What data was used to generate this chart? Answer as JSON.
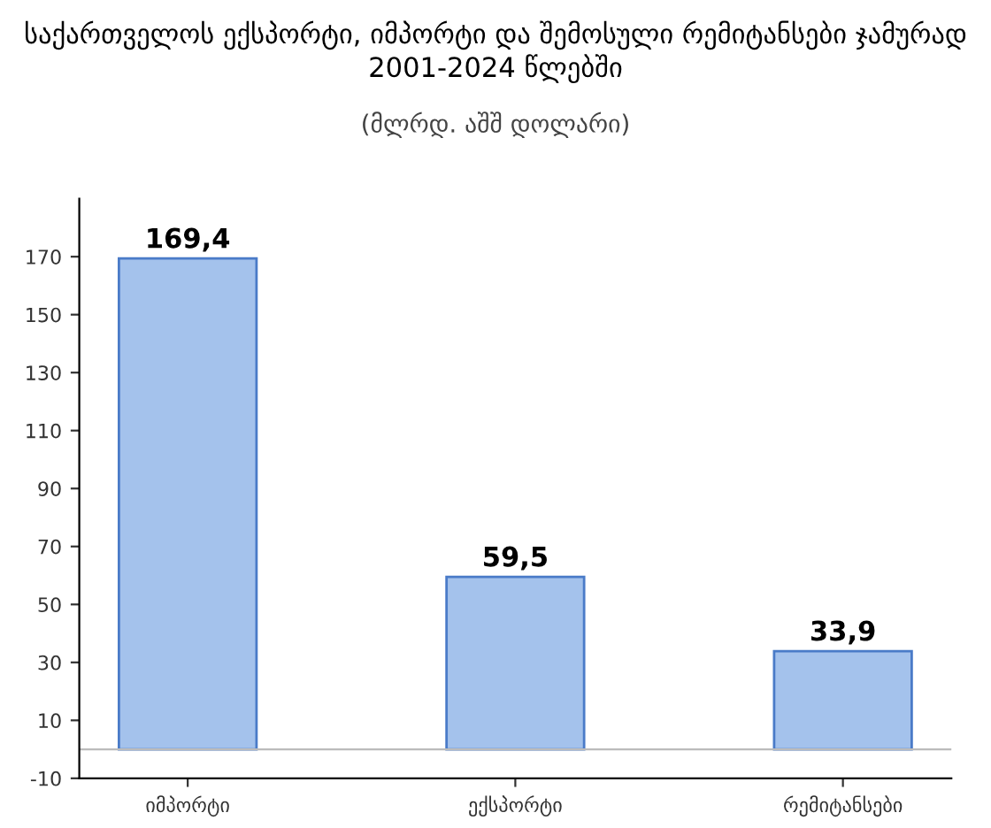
{
  "chart_data": {
    "type": "bar",
    "title": "საქართველოს ექსპორტი, იმპორტი და შემოსული რემიტანსები ჯამურად 2001-2024 წლებში",
    "subtitle": "(მლრდ. აშშ დოლარი)",
    "categories": [
      "იმპორტი",
      "ექსპორტი",
      "რემიტანსები"
    ],
    "values": [
      169.4,
      59.5,
      33.9
    ],
    "value_labels": [
      "169,4",
      "59,5",
      "33,9"
    ],
    "color": "#a4c2ec",
    "ylim": [
      -10,
      190
    ],
    "yticks": [
      -10,
      10,
      30,
      50,
      70,
      90,
      110,
      130,
      150,
      170
    ],
    "grid": false
  }
}
